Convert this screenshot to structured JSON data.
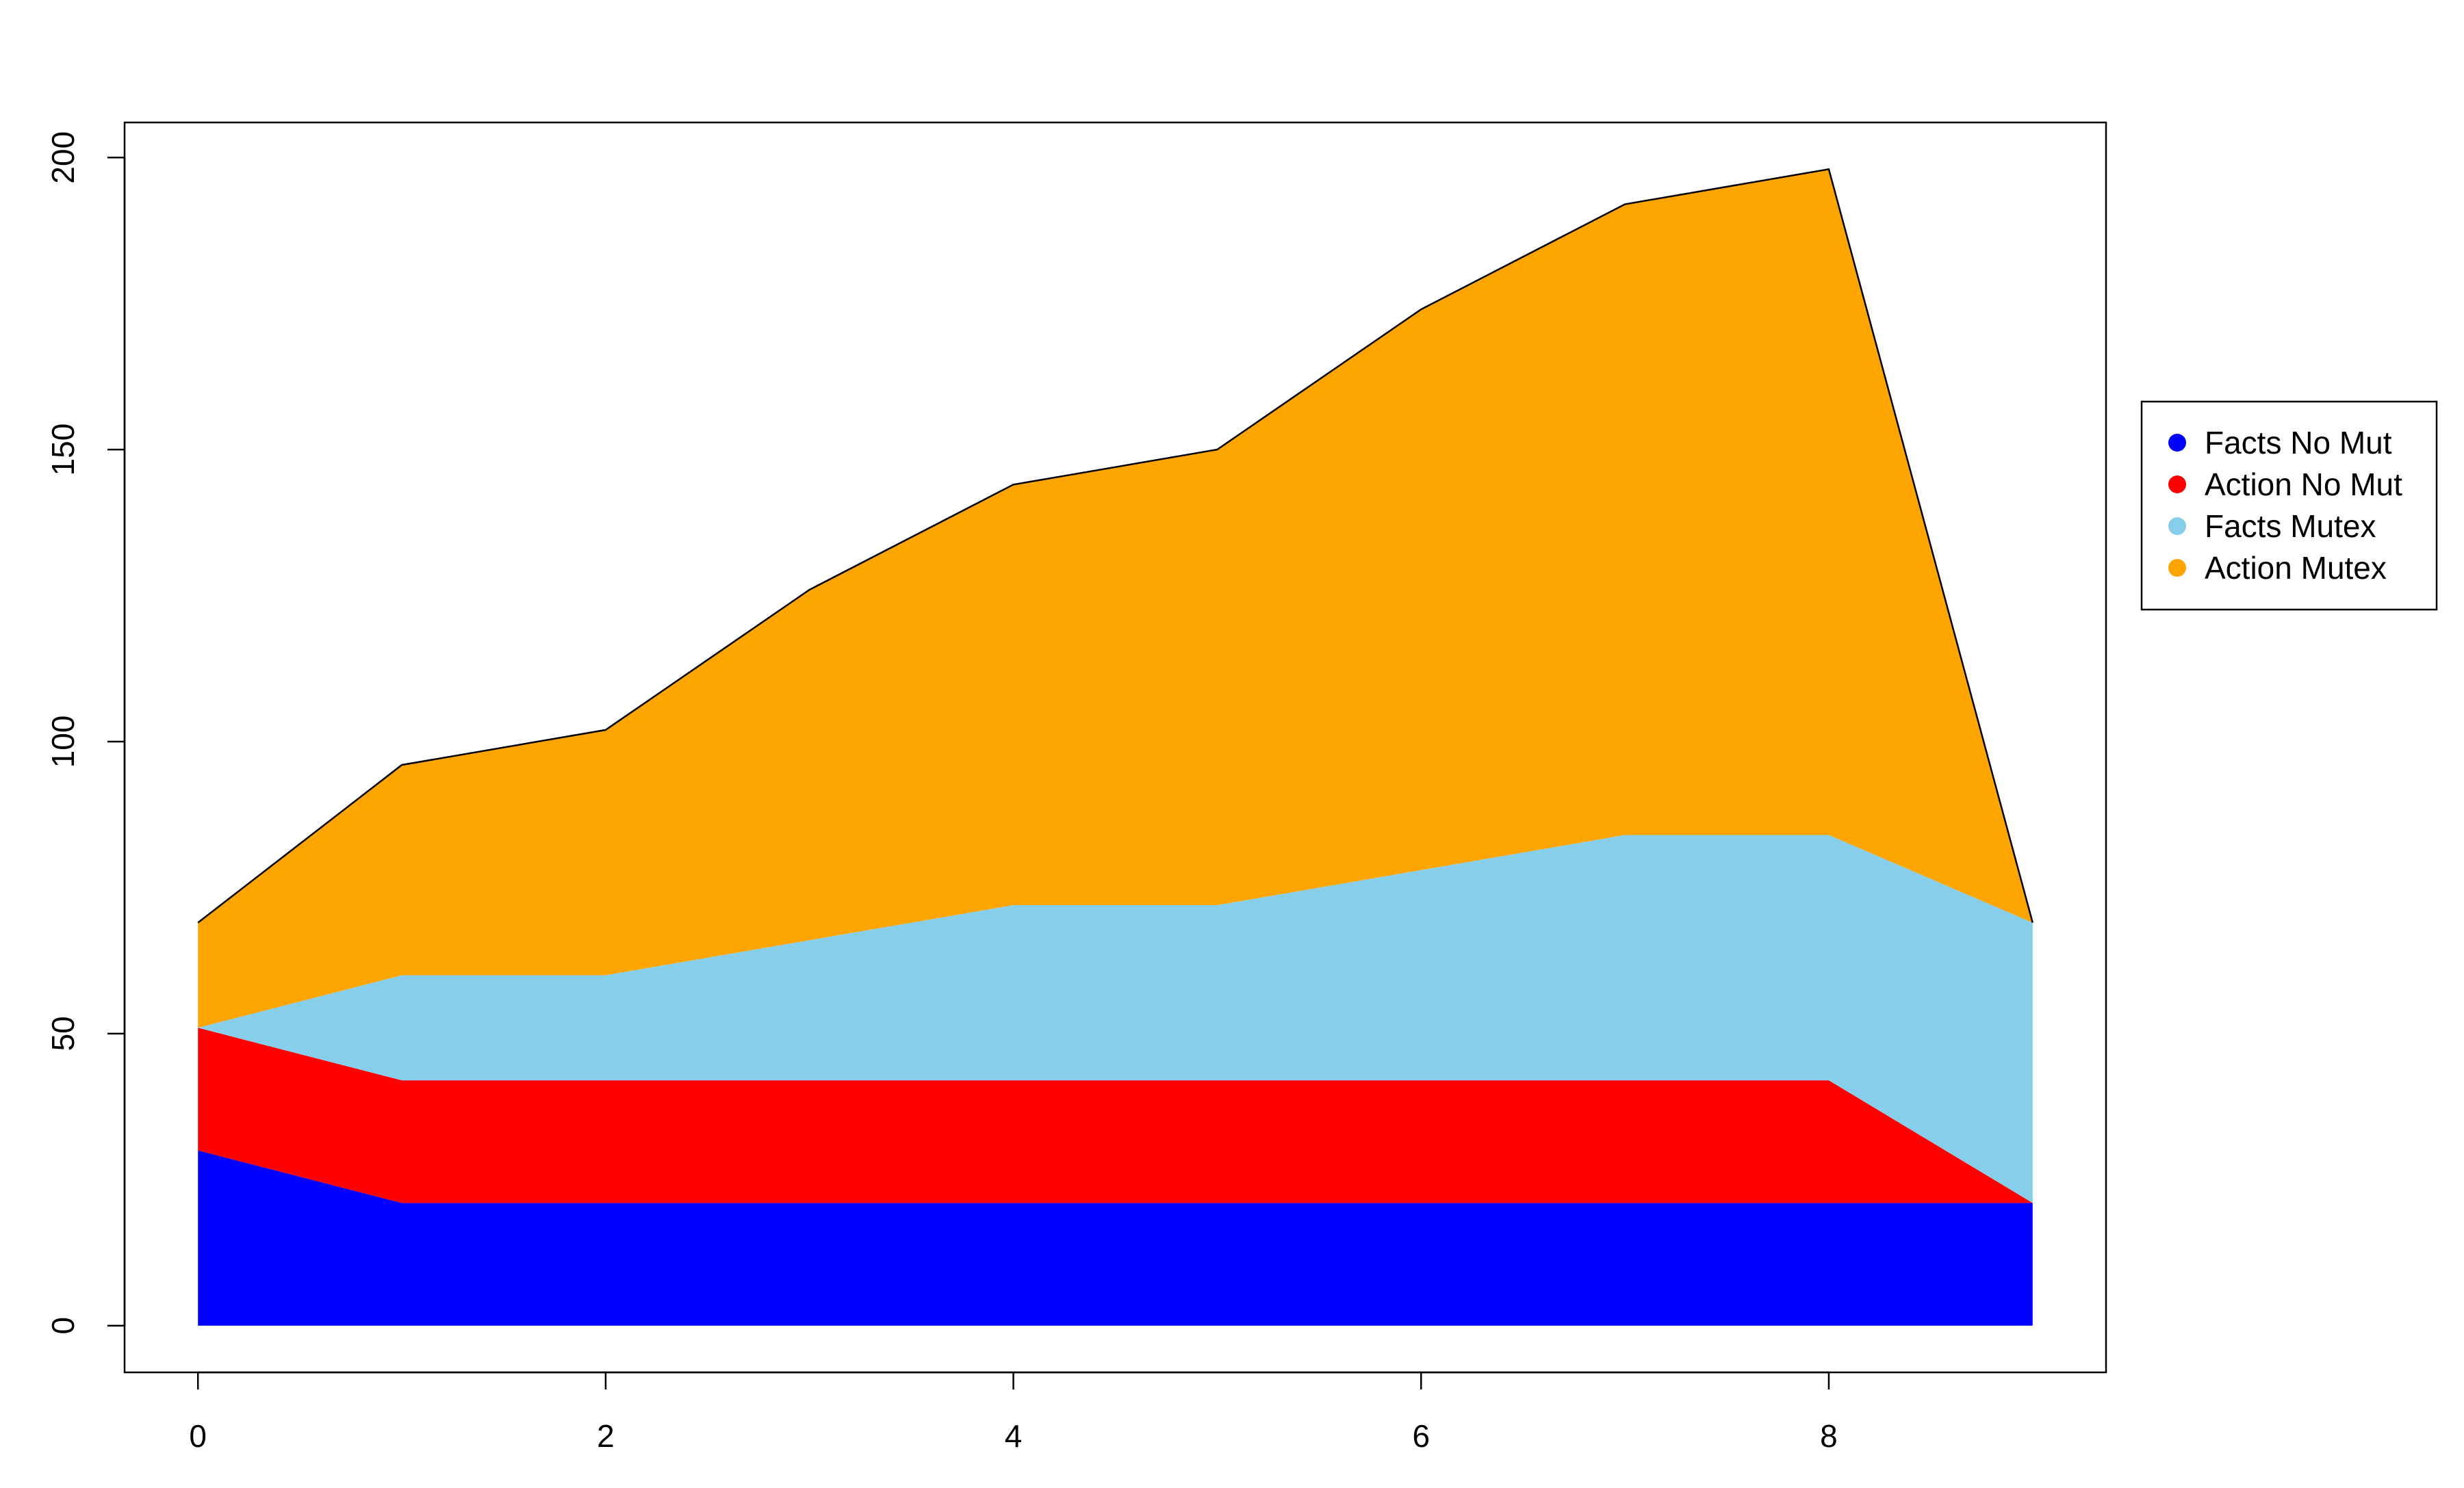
{
  "chart_data": {
    "type": "area",
    "stacked": true,
    "x": [
      0,
      1,
      2,
      3,
      4,
      5,
      6,
      7,
      8,
      9
    ],
    "xlim": [
      -0.36,
      9.36
    ],
    "ylim": [
      -8,
      206
    ],
    "x_ticks": [
      0,
      2,
      4,
      6,
      8
    ],
    "y_ticks": [
      0,
      50,
      100,
      150,
      200
    ],
    "grid": false,
    "legend_position": "right",
    "series": [
      {
        "name": "Facts No Mut",
        "color": "#0000ff",
        "values": [
          30,
          21,
          21,
          21,
          21,
          21,
          21,
          21,
          21,
          21
        ]
      },
      {
        "name": "Action No Mut",
        "color": "#ff0000",
        "values": [
          21,
          21,
          21,
          21,
          21,
          21,
          21,
          21,
          21,
          0
        ]
      },
      {
        "name": "Facts Mutex",
        "color": "#87ceeb",
        "values": [
          0,
          18,
          18,
          24,
          30,
          30,
          36,
          42,
          42,
          48
        ]
      },
      {
        "name": "Action Mutex",
        "color": "#ffa500",
        "values": [
          18,
          36,
          42,
          60,
          72,
          78,
          96,
          108,
          114,
          0
        ]
      }
    ]
  }
}
